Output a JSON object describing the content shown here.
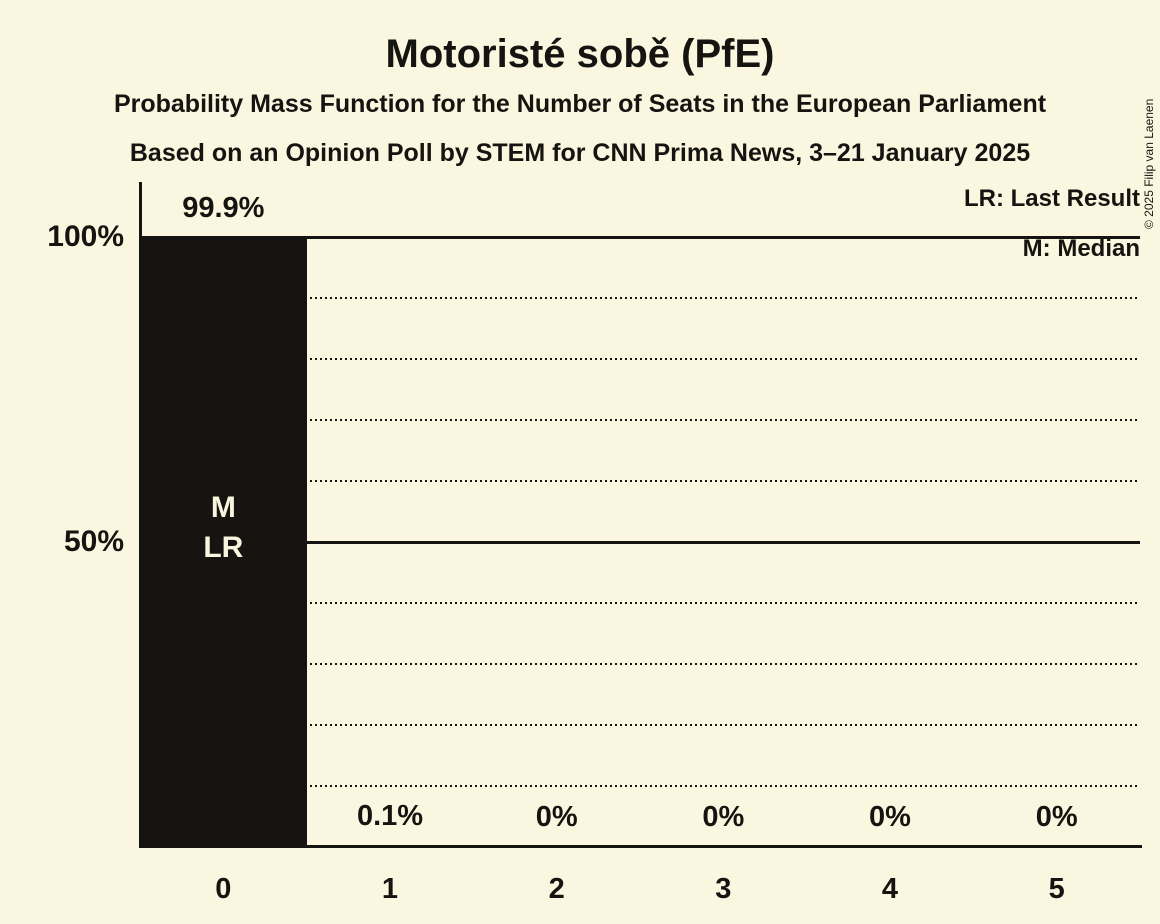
{
  "colors": {
    "background": "#FBF6DF",
    "ink": "#161410",
    "bar": "#161410",
    "bar_label": "#FAF5DE"
  },
  "copyright": "© 2025 Filip van Laenen",
  "chart_data": {
    "type": "bar",
    "title": "Motoristé sobě (PfE)",
    "subtitle": "Probability Mass Function for the Number of Seats in the European Parliament",
    "source_line": "Based on an Opinion Poll by STEM for CNN Prima News, 3–21 January 2025",
    "categories": [
      "0",
      "1",
      "2",
      "3",
      "4",
      "5"
    ],
    "values": [
      99.9,
      0.1,
      0,
      0,
      0,
      0
    ],
    "value_labels": [
      "99.9%",
      "0.1%",
      "0%",
      "0%",
      "0%",
      "0%"
    ],
    "bar_annotation": {
      "category": "0",
      "lines": [
        "M",
        "LR"
      ]
    },
    "legend": [
      "LR: Last Result",
      "M: Median"
    ],
    "legend_position": "top-right",
    "yticks": [
      {
        "label": "100%",
        "value": 100
      },
      {
        "label": "50%",
        "value": 50
      }
    ],
    "ylim": [
      0,
      100
    ],
    "gridlines": {
      "dotted_every_percent": 10,
      "solid_at_percent": [
        50,
        100
      ]
    },
    "xlabel": "",
    "ylabel": ""
  }
}
